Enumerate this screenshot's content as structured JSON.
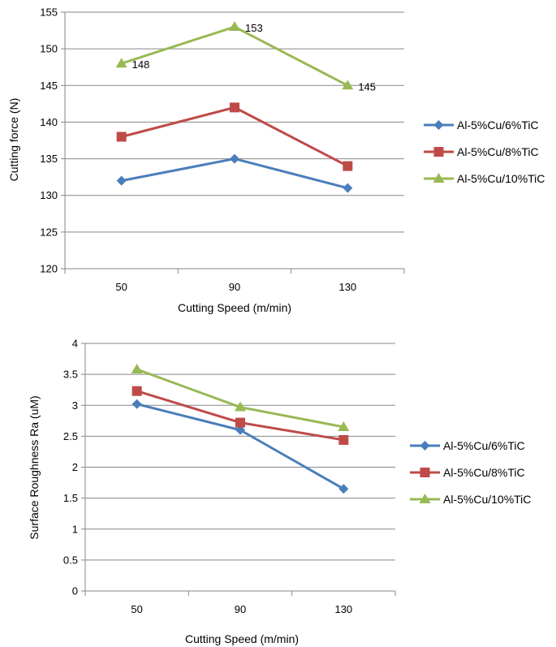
{
  "chart_data": [
    {
      "type": "line",
      "categories": [
        "50",
        "90",
        "130"
      ],
      "xlabel": "Cutting Speed (m/min)",
      "ylabel": "Cutting force (N)",
      "ylim": [
        120,
        155
      ],
      "ytick_step": 5,
      "grid": true,
      "legend_position": "right",
      "series": [
        {
          "name": "Al-5%Cu/6%TiC",
          "values": [
            132,
            135,
            131
          ],
          "color": "#4a7ebb",
          "marker": "diamond",
          "labels": null
        },
        {
          "name": "Al-5%Cu/8%TiC",
          "values": [
            138,
            142,
            134
          ],
          "color": "#be4b48",
          "marker": "square",
          "labels": null
        },
        {
          "name": "Al-5%Cu/10%TiC",
          "values": [
            148,
            153,
            145
          ],
          "color": "#98b954",
          "marker": "triangle",
          "labels": [
            "148",
            "153",
            "145"
          ]
        }
      ]
    },
    {
      "type": "line",
      "categories": [
        "50",
        "90",
        "130"
      ],
      "xlabel": "Cutting Speed (m/min)",
      "ylabel": "Surface Roughness Ra (uM)",
      "ylim": [
        0,
        4
      ],
      "ytick_step": 0.5,
      "grid": true,
      "legend_position": "right",
      "series": [
        {
          "name": "Al-5%Cu/6%TiC",
          "values": [
            3.02,
            2.6,
            1.65
          ],
          "color": "#4a7ebb",
          "marker": "diamond",
          "labels": null
        },
        {
          "name": "Al-5%Cu/8%TiC",
          "values": [
            3.23,
            2.72,
            2.44
          ],
          "color": "#be4b48",
          "marker": "square",
          "labels": null
        },
        {
          "name": "Al-5%Cu/10%TiC",
          "values": [
            3.58,
            2.97,
            2.65
          ],
          "color": "#98b954",
          "marker": "triangle",
          "labels": null
        }
      ]
    }
  ]
}
